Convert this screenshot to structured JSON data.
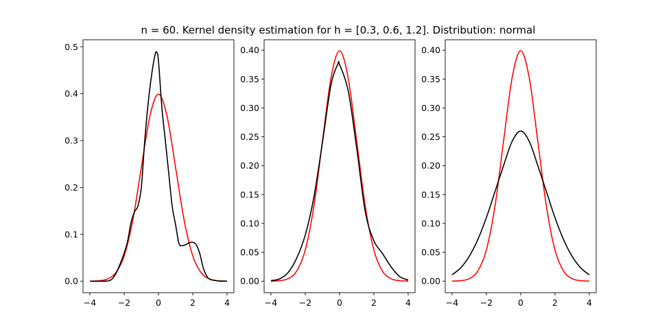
{
  "figure": {
    "title": "n = 60. Kernel density estimation for h = [0.3, 0.6, 1.2]. Distribution: normal"
  },
  "colors": {
    "true_density": "#ff0000",
    "kde": "#000000"
  },
  "chart_data": [
    {
      "type": "line",
      "xlim": [
        -4.4,
        4.4
      ],
      "ylim": [
        -0.0245,
        0.515
      ],
      "xticks": [
        -4,
        -2,
        0,
        2,
        4
      ],
      "xtick_labels": [
        "−4",
        "−2",
        "0",
        "2",
        "4"
      ],
      "yticks": [
        0.0,
        0.1,
        0.2,
        0.3,
        0.4,
        0.5
      ],
      "ytick_labels": [
        "0.0",
        "0.1",
        "0.2",
        "0.3",
        "0.4",
        "0.5"
      ],
      "series": [
        {
          "role": "true_density",
          "color": "#ff0000",
          "x": [
            -4.0,
            -3.5,
            -3.0,
            -2.5,
            -2.0,
            -1.5,
            -1.0,
            -0.5,
            0.0,
            0.5,
            1.0,
            1.5,
            2.0,
            2.5,
            3.0,
            3.5,
            4.0
          ],
          "y": [
            0.0001,
            0.0009,
            0.0044,
            0.0175,
            0.054,
            0.1295,
            0.242,
            0.3521,
            0.3989,
            0.3521,
            0.242,
            0.1295,
            0.054,
            0.0175,
            0.0044,
            0.0009,
            0.0001
          ]
        },
        {
          "role": "kde",
          "color": "#000000",
          "x": [
            -4.0,
            -3.2,
            -2.8,
            -2.5,
            -2.2,
            -2.0,
            -1.8,
            -1.6,
            -1.4,
            -1.2,
            -1.0,
            -0.8,
            -0.6,
            -0.4,
            -0.2,
            -0.1,
            0.0,
            0.2,
            0.4,
            0.6,
            0.8,
            1.0,
            1.2,
            1.4,
            1.6,
            1.8,
            2.0,
            2.2,
            2.4,
            2.6,
            2.8,
            3.0,
            3.5,
            4.0
          ],
          "y": [
            0.0,
            0.0,
            0.002,
            0.015,
            0.04,
            0.06,
            0.085,
            0.125,
            0.148,
            0.16,
            0.2,
            0.3,
            0.38,
            0.44,
            0.483,
            0.488,
            0.47,
            0.37,
            0.3,
            0.23,
            0.16,
            0.12,
            0.08,
            0.076,
            0.078,
            0.082,
            0.083,
            0.078,
            0.06,
            0.03,
            0.012,
            0.004,
            0.0005,
            0.0
          ]
        }
      ]
    },
    {
      "type": "line",
      "xlim": [
        -4.4,
        4.4
      ],
      "ylim": [
        -0.0199,
        0.418
      ],
      "xticks": [
        -4,
        -2,
        0,
        2,
        4
      ],
      "xtick_labels": [
        "−4",
        "−2",
        "0",
        "2",
        "4"
      ],
      "yticks": [
        0.0,
        0.05,
        0.1,
        0.15,
        0.2,
        0.25,
        0.3,
        0.35,
        0.4
      ],
      "ytick_labels": [
        "0.00",
        "0.05",
        "0.10",
        "0.15",
        "0.20",
        "0.25",
        "0.30",
        "0.35",
        "0.40"
      ],
      "series": [
        {
          "role": "true_density",
          "color": "#ff0000",
          "x": [
            -4.0,
            -3.5,
            -3.0,
            -2.5,
            -2.0,
            -1.5,
            -1.0,
            -0.5,
            0.0,
            0.5,
            1.0,
            1.5,
            2.0,
            2.5,
            3.0,
            3.5,
            4.0
          ],
          "y": [
            0.0001,
            0.0009,
            0.0044,
            0.0175,
            0.054,
            0.1295,
            0.242,
            0.3521,
            0.3989,
            0.3521,
            0.242,
            0.1295,
            0.054,
            0.0175,
            0.0044,
            0.0009,
            0.0001
          ]
        },
        {
          "role": "kde",
          "color": "#000000",
          "x": [
            -4.0,
            -3.5,
            -3.0,
            -2.5,
            -2.0,
            -1.5,
            -1.0,
            -0.5,
            -0.1,
            0.0,
            0.5,
            1.0,
            1.5,
            2.0,
            2.5,
            3.0,
            3.5,
            4.0
          ],
          "y": [
            0.001,
            0.004,
            0.015,
            0.04,
            0.08,
            0.145,
            0.24,
            0.34,
            0.376,
            0.375,
            0.33,
            0.23,
            0.12,
            0.07,
            0.048,
            0.025,
            0.008,
            0.002
          ]
        }
      ]
    },
    {
      "type": "line",
      "xlim": [
        -4.4,
        4.4
      ],
      "ylim": [
        -0.0199,
        0.418
      ],
      "xticks": [
        -4,
        -2,
        0,
        2,
        4
      ],
      "xtick_labels": [
        "−4",
        "−2",
        "0",
        "2",
        "4"
      ],
      "yticks": [
        0.0,
        0.05,
        0.1,
        0.15,
        0.2,
        0.25,
        0.3,
        0.35,
        0.4
      ],
      "ytick_labels": [
        "0.00",
        "0.05",
        "0.10",
        "0.15",
        "0.20",
        "0.25",
        "0.30",
        "0.35",
        "0.40"
      ],
      "series": [
        {
          "role": "true_density",
          "color": "#ff0000",
          "x": [
            -4.0,
            -3.5,
            -3.0,
            -2.5,
            -2.0,
            -1.5,
            -1.0,
            -0.5,
            0.0,
            0.5,
            1.0,
            1.5,
            2.0,
            2.5,
            3.0,
            3.5,
            4.0
          ],
          "y": [
            0.0001,
            0.0009,
            0.0044,
            0.0175,
            0.054,
            0.1295,
            0.242,
            0.3521,
            0.3989,
            0.3521,
            0.242,
            0.1295,
            0.054,
            0.0175,
            0.0044,
            0.0009,
            0.0001
          ]
        },
        {
          "role": "kde",
          "color": "#000000",
          "x": [
            -4.0,
            -3.5,
            -3.0,
            -2.5,
            -2.0,
            -1.5,
            -1.0,
            -0.5,
            0.0,
            0.5,
            1.0,
            1.5,
            2.0,
            2.5,
            3.0,
            3.5,
            4.0
          ],
          "y": [
            0.011,
            0.023,
            0.043,
            0.072,
            0.11,
            0.155,
            0.2,
            0.242,
            0.26,
            0.242,
            0.2,
            0.155,
            0.11,
            0.072,
            0.043,
            0.023,
            0.011
          ]
        }
      ]
    }
  ]
}
